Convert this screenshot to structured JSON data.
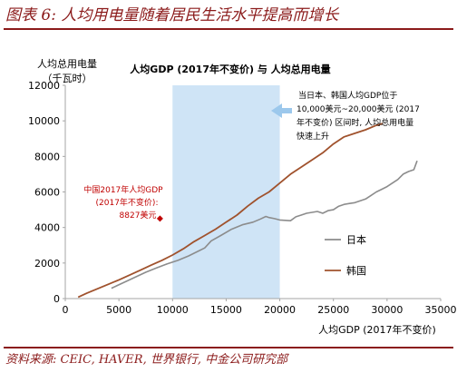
{
  "figure": {
    "title": "图表 6: 人均用电量随着居民生活水平提高而增长",
    "source": "资料来源: CEIC, HAVER, 世界银行, 中金公司研究部"
  },
  "chart_data": {
    "type": "line",
    "title": "人均GDP (2017年不变价) 与 人均总用电量",
    "xlabel": "人均GDP (2017年不变价)",
    "ylabel": "人均总用电量",
    "ylabel_unit": "（千瓦时）",
    "xlim": [
      0,
      35000
    ],
    "ylim": [
      0,
      12000
    ],
    "xticks": [
      0,
      5000,
      10000,
      15000,
      20000,
      25000,
      30000,
      35000
    ],
    "yticks": [
      0,
      2000,
      4000,
      6000,
      8000,
      10000,
      12000
    ],
    "grid": false,
    "legend_position": "right",
    "colors": {
      "japan": "#8c8c8c",
      "korea": "#a0522d",
      "highlight_band": "#cfe4f6",
      "arrow": "#9cc8ec",
      "china_marker": "#c00000",
      "frame": "#a6a6a6"
    },
    "highlight_band": {
      "x_from": 10000,
      "x_to": 20000
    },
    "series": [
      {
        "name": "日本",
        "key": "japan",
        "x": [
          4300,
          5500,
          6500,
          7500,
          8500,
          9500,
          10500,
          11500,
          12500,
          13000,
          13600,
          14500,
          15500,
          16500,
          17500,
          18200,
          18700,
          19000,
          19500,
          20000,
          20500,
          21000,
          21500,
          22000,
          22500,
          23000,
          23500,
          24000,
          24500,
          25000,
          25500,
          26000,
          26500,
          27000,
          27500,
          28000,
          28500,
          29000,
          29500,
          30000,
          30500,
          31000,
          31500,
          32000,
          32500,
          32800
        ],
        "y": [
          580,
          920,
          1200,
          1480,
          1720,
          1950,
          2150,
          2400,
          2700,
          2850,
          3250,
          3550,
          3900,
          4150,
          4300,
          4480,
          4620,
          4560,
          4500,
          4420,
          4400,
          4380,
          4600,
          4700,
          4800,
          4850,
          4900,
          4800,
          4950,
          5000,
          5200,
          5300,
          5350,
          5400,
          5500,
          5600,
          5800,
          6000,
          6150,
          6300,
          6500,
          6700,
          7000,
          7150,
          7250,
          7750
        ]
      },
      {
        "name": "韩国",
        "key": "korea",
        "x": [
          1200,
          2000,
          3000,
          4000,
          5000,
          6000,
          7000,
          8000,
          9000,
          10000,
          11000,
          12000,
          13000,
          14000,
          15000,
          16000,
          17000,
          18000,
          19000,
          20000,
          21000,
          22000,
          23000,
          24000,
          25000,
          26000,
          27000,
          28000,
          29000,
          29600
        ],
        "y": [
          80,
          300,
          550,
          800,
          1050,
          1320,
          1600,
          1880,
          2150,
          2450,
          2800,
          3200,
          3550,
          3900,
          4300,
          4700,
          5200,
          5650,
          6000,
          6500,
          7000,
          7400,
          7800,
          8200,
          8700,
          9100,
          9300,
          9500,
          9750,
          9850
        ]
      }
    ],
    "annotations": [
      {
        "key": "china",
        "text": "中国2017年人均GDP",
        "text2": "(2017年不变价):",
        "value_label": "8827美元",
        "x": 8827,
        "y": 4500
      },
      {
        "key": "note",
        "lines": [
          "当日本、韩国人均GDP位于",
          "10,000美元~20,000美元 (2017",
          "年不变价) 区间时, 人均总用电量",
          "快速上升"
        ]
      }
    ]
  }
}
